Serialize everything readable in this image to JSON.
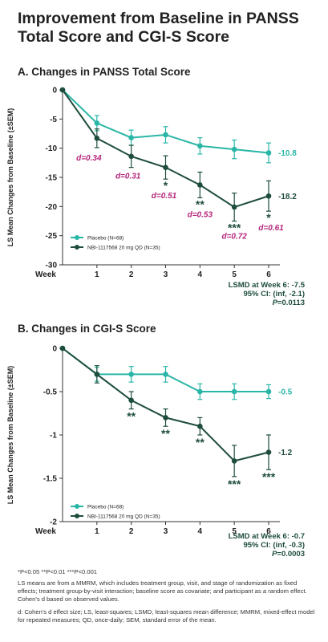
{
  "title": "Improvement from Baseline in PANSS Total Score and CGI-S Score",
  "colors": {
    "placebo": "#29b6a6",
    "drug": "#1e4d3c",
    "cohen": "#b5257a"
  },
  "chart_data": [
    {
      "type": "line",
      "title": "A. Changes in PANSS Total Score",
      "ylabel": "LS Mean Changes from Baseline (±SEM)",
      "x_label": "Week",
      "x": [
        0,
        1,
        2,
        3,
        4,
        5,
        6
      ],
      "x_tick_labels": [
        "1",
        "2",
        "3",
        "4",
        "5",
        "6"
      ],
      "ylim": [
        -30,
        0
      ],
      "y_ticks": [
        0,
        -5,
        -10,
        -15,
        -20,
        -25,
        -30
      ],
      "series": [
        {
          "name": "Placebo (N=68)",
          "values": [
            0,
            -5.7,
            -8.2,
            -7.7,
            -9.6,
            -10.2,
            -10.8
          ],
          "sem": [
            0,
            1.3,
            1.3,
            1.4,
            1.4,
            1.6,
            1.7
          ]
        },
        {
          "name": "NBI-1117568 20 mg QD (N=35)",
          "values": [
            0,
            -8.3,
            -11.4,
            -13.3,
            -16.3,
            -20.1,
            -18.2
          ],
          "sem": [
            0,
            1.6,
            1.9,
            2.0,
            2.2,
            2.4,
            2.6
          ]
        }
      ],
      "end_labels": [
        "-10.8",
        "-18.2"
      ],
      "cohen_d": [
        {
          "week": 1,
          "label": "d=0.34"
        },
        {
          "week": 2,
          "label": "d=0.31"
        },
        {
          "week": 3,
          "label": "d=0.51"
        },
        {
          "week": 4,
          "label": "d=0.53"
        },
        {
          "week": 5,
          "label": "d=0.72"
        },
        {
          "week": 6,
          "label": "d=0.61"
        }
      ],
      "significance": [
        {
          "week": 3,
          "stars": "*"
        },
        {
          "week": 4,
          "stars": "**"
        },
        {
          "week": 5,
          "stars": "***"
        },
        {
          "week": 6,
          "stars": "*"
        }
      ],
      "lsmd": [
        "LSMD at Week 6: -7.5",
        "95% CI: (inf, -2.1)",
        "P=0.0113"
      ]
    },
    {
      "type": "line",
      "title": "B. Changes in CGI-S Score",
      "ylabel": "LS Mean Changes from Baseline (±SEM)",
      "x_label": "Week",
      "x": [
        0,
        1,
        2,
        3,
        4,
        5,
        6
      ],
      "x_tick_labels": [
        "1",
        "2",
        "3",
        "4",
        "5",
        "6"
      ],
      "ylim": [
        -2,
        0
      ],
      "y_ticks": [
        0,
        -0.5,
        -1,
        -1.5,
        -2
      ],
      "y_tick_labels": [
        "0",
        "-0.5",
        "-1",
        "-1.5",
        "-2"
      ],
      "series": [
        {
          "name": "Placebo (N=68)",
          "values": [
            0,
            -0.3,
            -0.3,
            -0.3,
            -0.5,
            -0.5,
            -0.5
          ],
          "sem": [
            0,
            0.08,
            0.09,
            0.09,
            0.09,
            0.09,
            0.08
          ]
        },
        {
          "name": "NBI-1117568 20 mg QD (N=35)",
          "values": [
            0,
            -0.3,
            -0.6,
            -0.8,
            -0.9,
            -1.3,
            -1.2
          ],
          "sem": [
            0,
            0.1,
            0.1,
            0.1,
            0.1,
            0.18,
            0.2
          ]
        }
      ],
      "end_labels": [
        "-0.5",
        "-1.2"
      ],
      "significance": [
        {
          "week": 2,
          "stars": "**"
        },
        {
          "week": 3,
          "stars": "**"
        },
        {
          "week": 4,
          "stars": "**"
        },
        {
          "week": 5,
          "stars": "***"
        },
        {
          "week": 6,
          "stars": "***"
        }
      ],
      "lsmd": [
        "LSMD at Week 6: -0.7",
        "95% CI: (inf, -0.3)",
        "P=0.0003"
      ]
    }
  ],
  "footnotes": {
    "significance": "*P<0.05 **P<0.01 ***P<0.001",
    "methods": "LS means are from a MMRM, which includes treatment group, visit, and stage of randomization as fixed effects; treatment group-by-visit interaction; baseline score as covariate; and participant as a random effect. Cohen's d based on observed values.",
    "abbreviations": "d: Cohen's d effect size; LS, least-squares; LSMD, least-squares mean difference; MMRM, mixed-effect model for repeated measures; QD, once-daily; SEM, standard error of the mean."
  }
}
